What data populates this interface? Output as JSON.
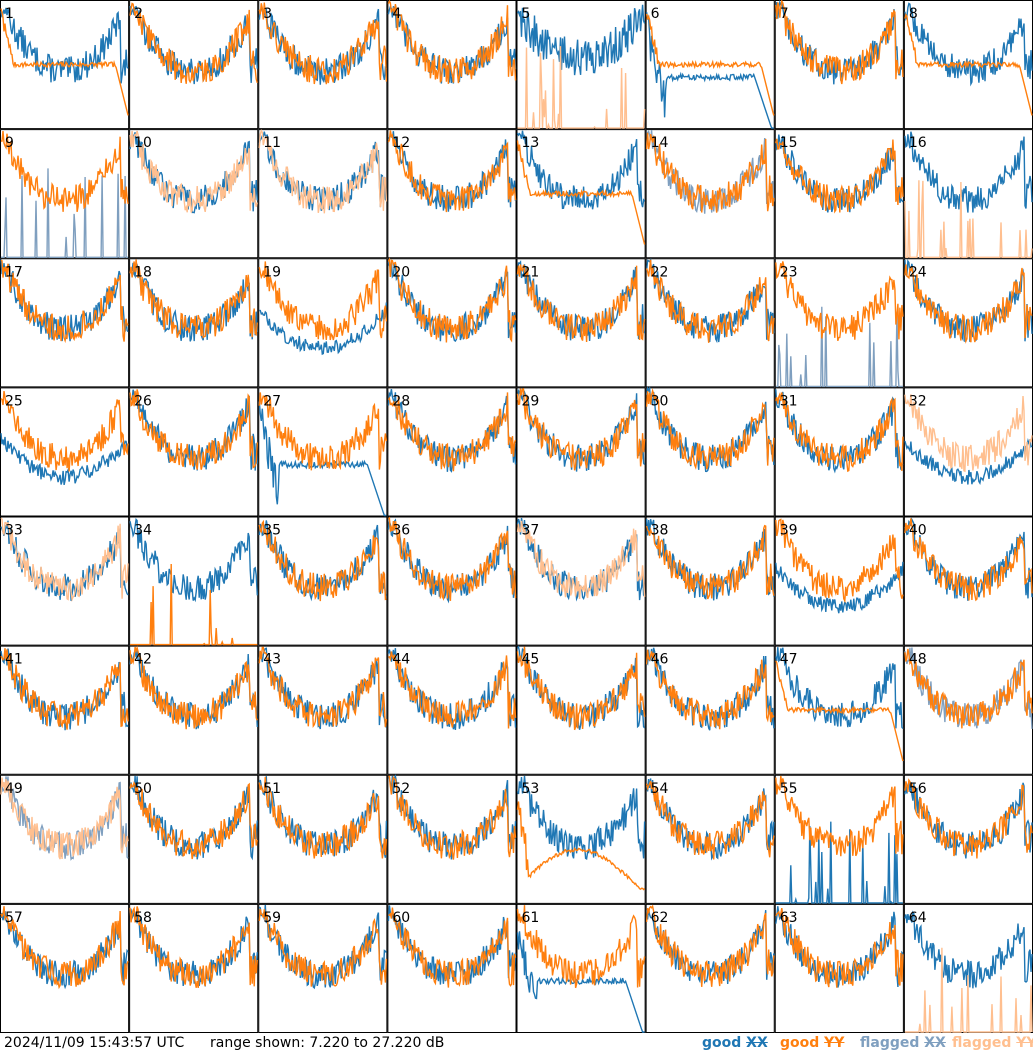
{
  "chart_data": {
    "type": "line",
    "layout": "small-multiples grid, 8 columns x 8 rows",
    "panel_labels": [
      "1",
      "2",
      "3",
      "4",
      "5",
      "6",
      "7",
      "8",
      "9",
      "10",
      "11",
      "12",
      "13",
      "14",
      "15",
      "16",
      "17",
      "18",
      "19",
      "20",
      "21",
      "22",
      "23",
      "24",
      "25",
      "26",
      "27",
      "28",
      "29",
      "30",
      "31",
      "32",
      "33",
      "34",
      "35",
      "36",
      "37",
      "38",
      "39",
      "40",
      "41",
      "42",
      "43",
      "44",
      "45",
      "46",
      "47",
      "48",
      "49",
      "50",
      "51",
      "52",
      "53",
      "54",
      "55",
      "56",
      "57",
      "58",
      "59",
      "60",
      "61",
      "62",
      "63",
      "64"
    ],
    "ylim": [
      7.22,
      27.22
    ],
    "yunits": "dB",
    "series": [
      {
        "name": "good XX",
        "color": "#1f77b4"
      },
      {
        "name": "good YY",
        "color": "#ff7f0e"
      },
      {
        "name": "flagged XX",
        "color": "#7f9fbf"
      },
      {
        "name": "flagged YY",
        "color": "#ffbf8f"
      }
    ],
    "panel_profiles": {
      "xx": [
        "bath",
        "bath",
        "bath",
        "bath",
        "high",
        "droop",
        "bath",
        "bath",
        "spikes",
        "bath",
        "bath",
        "bath",
        "bath",
        "bath",
        "bath",
        "bath",
        "bath",
        "bath",
        "low",
        "bath",
        "bath",
        "bath",
        "spikes",
        "bath",
        "low",
        "bath",
        "droop",
        "bath",
        "bath",
        "bath",
        "bath",
        "low",
        "bath",
        "bath",
        "bath",
        "bath",
        "bath",
        "bath",
        "low",
        "bath",
        "bath",
        "bath",
        "bath",
        "bath",
        "bath",
        "bath",
        "bath",
        "bath",
        "bath",
        "bath",
        "bath",
        "bath",
        "bath",
        "bath",
        "spikes",
        "bath",
        "bath",
        "bath",
        "bath",
        "bath",
        "droop",
        "bath",
        "bath",
        "bath"
      ],
      "xx_flagged": [
        false,
        false,
        false,
        false,
        false,
        false,
        false,
        false,
        true,
        false,
        false,
        false,
        false,
        true,
        false,
        false,
        false,
        false,
        false,
        false,
        false,
        false,
        true,
        false,
        false,
        false,
        false,
        false,
        false,
        false,
        false,
        false,
        false,
        false,
        false,
        false,
        false,
        false,
        false,
        false,
        false,
        false,
        false,
        false,
        false,
        false,
        false,
        true,
        true,
        false,
        false,
        false,
        false,
        false,
        false,
        false,
        false,
        false,
        false,
        false,
        false,
        false,
        false,
        false
      ],
      "yy": [
        "flat",
        "bath",
        "bath",
        "bath",
        "spikes",
        "flat",
        "bath",
        "flat",
        "bath",
        "bath",
        "bath",
        "bath",
        "flat",
        "bath",
        "bath",
        "spikes",
        "bath",
        "bath",
        "bath",
        "bath",
        "bath",
        "bath",
        "bath",
        "bath",
        "bath",
        "bath",
        "bath",
        "bath",
        "bath",
        "bath",
        "bath",
        "bath",
        "bath",
        "spikes",
        "bath",
        "bath",
        "bath",
        "bath",
        "bath",
        "bath",
        "bath",
        "bath",
        "bath",
        "bath",
        "bath",
        "bath",
        "flat",
        "bath",
        "bath",
        "bath",
        "bath",
        "bath",
        "arch",
        "bath",
        "bath",
        "bath",
        "bath",
        "bath",
        "bath",
        "bath",
        "bath",
        "bath",
        "bath",
        "spikes"
      ],
      "yy_flagged": [
        false,
        false,
        false,
        false,
        true,
        false,
        false,
        false,
        false,
        true,
        true,
        false,
        false,
        false,
        false,
        true,
        false,
        false,
        false,
        false,
        false,
        false,
        false,
        false,
        false,
        false,
        false,
        false,
        false,
        false,
        false,
        true,
        true,
        false,
        false,
        false,
        true,
        false,
        false,
        false,
        false,
        false,
        false,
        false,
        false,
        false,
        false,
        false,
        true,
        false,
        false,
        false,
        false,
        false,
        false,
        false,
        false,
        false,
        false,
        false,
        false,
        false,
        false,
        true
      ]
    }
  },
  "footer": {
    "timestamp": "2024/11/09 15:43:57 UTC",
    "range_text": "range shown: 7.220 to 27.220 dB",
    "legend": {
      "good_xx_word": "good",
      "good_xx_pol": "XX",
      "good_yy_word": "good",
      "good_yy_pol": "YY",
      "flagged_xx_word": "flagged",
      "flagged_xx_pol": "XX",
      "flagged_yy_word": "flagged",
      "flagged_yy_pol": "YY"
    }
  }
}
